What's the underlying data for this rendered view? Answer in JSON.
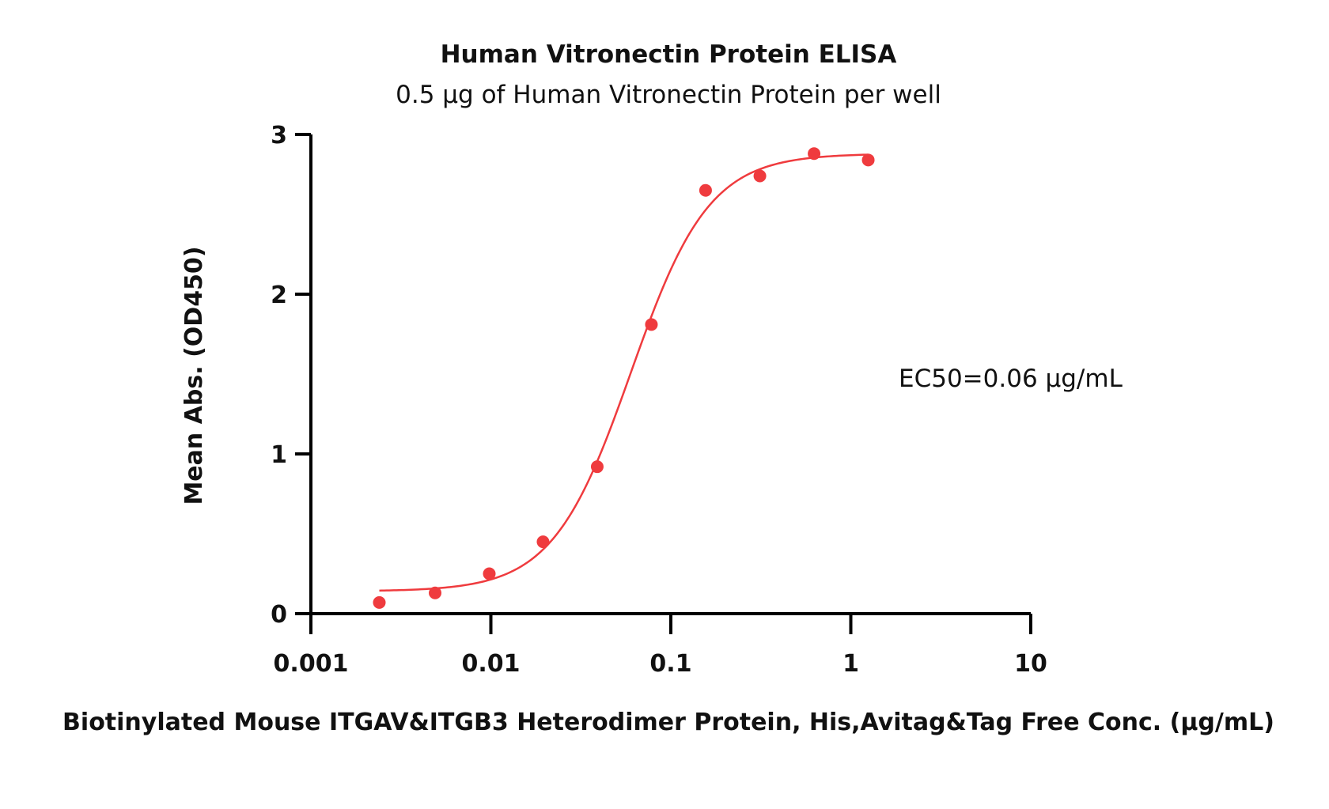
{
  "chart_data": {
    "type": "scatter",
    "title": "Human Vitronectin Protein ELISA",
    "subtitle": "0.5 μg of Human Vitronectin Protein per well",
    "xlabel": "Biotinylated Mouse ITGAV&ITGB3 Heterodimer Protein, His,Avitag&Tag Free Conc. (μg/mL)",
    "ylabel": "Mean Abs. (OD450)",
    "x_scale": "log",
    "xlim": [
      0.001,
      10
    ],
    "ylim": [
      0,
      3
    ],
    "x_ticks": [
      0.001,
      0.01,
      0.1,
      1,
      10
    ],
    "x_tick_labels": [
      "0.001",
      "0.01",
      "0.1",
      "1",
      "10"
    ],
    "y_ticks": [
      0,
      1,
      2,
      3
    ],
    "y_tick_labels": [
      "0",
      "1",
      "2",
      "3"
    ],
    "grid": false,
    "legend": "none",
    "color": "#ef3b3e",
    "series": [
      {
        "x": [
          0.0024,
          0.0049,
          0.0098,
          0.0195,
          0.039,
          0.078,
          0.156,
          0.3125,
          0.625,
          1.25
        ],
        "y": [
          0.07,
          0.13,
          0.25,
          0.45,
          0.92,
          1.81,
          2.65,
          2.74,
          2.88,
          2.84
        ]
      }
    ],
    "fit": {
      "type": "4PL",
      "bottom": 0.14,
      "top": 2.88,
      "ec50": 0.06,
      "hill": 2.0,
      "x_range": [
        0.0024,
        1.25
      ]
    },
    "annotations": [
      {
        "text": "EC50=0.06 μg/mL"
      }
    ]
  }
}
